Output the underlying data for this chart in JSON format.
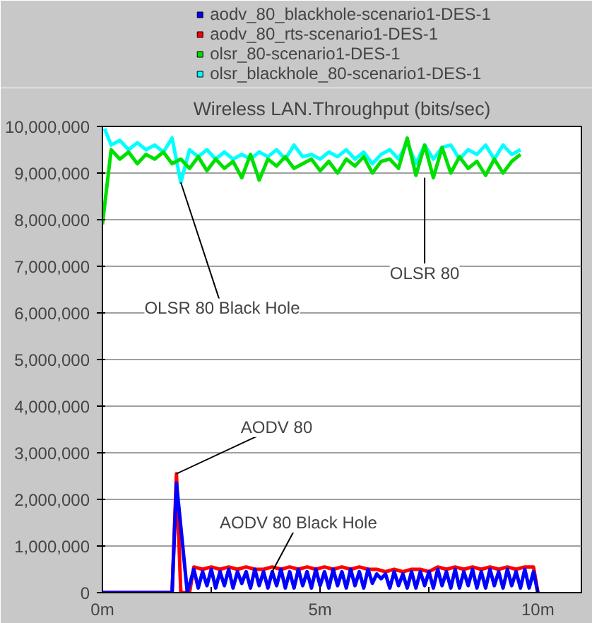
{
  "chart_data": {
    "type": "line",
    "title": "Wireless LAN.Throughput (bits/sec)",
    "xlim": [
      0,
      11
    ],
    "ylim": [
      0,
      10000000
    ],
    "xticks": [
      {
        "value": 0,
        "label": "0m"
      },
      {
        "value": 2.5,
        "label": null
      },
      {
        "value": 5,
        "label": "5m"
      },
      {
        "value": 7.5,
        "label": null
      },
      {
        "value": 10,
        "label": "10m"
      }
    ],
    "yticks": [
      {
        "value": 0,
        "label": "0"
      },
      {
        "value": 1000000,
        "label": "1,000,000"
      },
      {
        "value": 2000000,
        "label": "2,000,000"
      },
      {
        "value": 3000000,
        "label": "3,000,000"
      },
      {
        "value": 4000000,
        "label": "4,000,000"
      },
      {
        "value": 5000000,
        "label": "5,000,000"
      },
      {
        "value": 6000000,
        "label": "6,000,000"
      },
      {
        "value": 7000000,
        "label": "7,000,000"
      },
      {
        "value": 8000000,
        "label": "8,000,000"
      },
      {
        "value": 9000000,
        "label": "9,000,000"
      },
      {
        "value": 10000000,
        "label": "10,000,000"
      }
    ],
    "grid": "y",
    "legend": "top",
    "series": [
      {
        "name": "aodv_80_blackhole-scenario1-DES-1",
        "color": "#0000ff",
        "x": [
          0,
          1.6,
          1.7,
          1.95,
          2.1,
          2.2,
          2.3,
          2.4,
          2.5,
          2.6,
          2.7,
          2.8,
          2.9,
          3.0,
          3.1,
          3.2,
          3.3,
          3.4,
          3.5,
          3.6,
          3.7,
          3.8,
          3.9,
          4.0,
          4.1,
          4.2,
          4.3,
          4.4,
          4.5,
          4.6,
          4.7,
          4.8,
          4.9,
          5.0,
          5.1,
          5.2,
          5.3,
          5.4,
          5.5,
          5.6,
          5.7,
          5.8,
          5.9,
          6.0,
          6.1,
          6.2,
          6.3,
          6.4,
          6.5,
          6.6,
          6.7,
          6.8,
          6.9,
          7.0,
          7.1,
          7.2,
          7.3,
          7.4,
          7.5,
          7.6,
          7.7,
          7.8,
          7.9,
          8.0,
          8.1,
          8.2,
          8.3,
          8.4,
          8.5,
          8.6,
          8.7,
          8.8,
          8.9,
          9.0,
          9.1,
          9.2,
          9.3,
          9.4,
          9.5,
          9.6,
          9.7,
          9.8,
          9.9,
          10.0
        ],
        "values": [
          0,
          0,
          2350000,
          0,
          500000,
          100000,
          450000,
          150000,
          500000,
          100000,
          450000,
          150000,
          500000,
          100000,
          450000,
          200000,
          450000,
          100000,
          500000,
          150000,
          450000,
          100000,
          450000,
          150000,
          500000,
          100000,
          450000,
          100000,
          500000,
          150000,
          450000,
          100000,
          500000,
          150000,
          450000,
          100000,
          500000,
          150000,
          450000,
          100000,
          500000,
          150000,
          450000,
          100000,
          500000,
          200000,
          400000,
          300000,
          400000,
          100000,
          450000,
          150000,
          400000,
          100000,
          450000,
          100000,
          450000,
          150000,
          450000,
          100000,
          500000,
          150000,
          450000,
          100000,
          500000,
          100000,
          450000,
          150000,
          500000,
          100000,
          450000,
          100000,
          500000,
          150000,
          450000,
          100000,
          500000,
          150000,
          450000,
          100000,
          500000,
          100000,
          450000,
          0
        ]
      },
      {
        "name": "aodv_80_rts-scenario1-DES-1",
        "color": "#ff0000",
        "x": [
          0,
          1.6,
          1.7,
          1.8,
          2.0,
          2.1,
          2.3,
          2.5,
          2.7,
          2.9,
          3.1,
          3.3,
          3.5,
          3.7,
          3.9,
          4.1,
          4.3,
          4.5,
          4.7,
          4.9,
          5.1,
          5.3,
          5.5,
          5.7,
          5.9,
          6.1,
          6.3,
          6.5,
          6.7,
          6.9,
          7.1,
          7.3,
          7.5,
          7.7,
          7.9,
          8.1,
          8.3,
          8.5,
          8.7,
          8.9,
          9.1,
          9.3,
          9.5,
          9.7,
          9.9,
          10.0
        ],
        "values": [
          0,
          0,
          2550000,
          0,
          0,
          550000,
          500000,
          550000,
          500000,
          550000,
          500000,
          550000,
          500000,
          500000,
          550000,
          500000,
          550000,
          500000,
          550000,
          500000,
          550000,
          500000,
          550000,
          500000,
          550000,
          500000,
          500000,
          450000,
          500000,
          450000,
          500000,
          500000,
          450000,
          550000,
          500000,
          550000,
          500000,
          550000,
          500000,
          550000,
          500000,
          550000,
          500000,
          550000,
          550000,
          0
        ]
      },
      {
        "name": "olsr_80-scenario1-DES-1",
        "color": "#00e000",
        "x": [
          0,
          0.2,
          0.4,
          0.6,
          0.8,
          1.0,
          1.2,
          1.4,
          1.6,
          1.8,
          2.0,
          2.2,
          2.4,
          2.6,
          2.8,
          3.0,
          3.2,
          3.4,
          3.6,
          3.8,
          4.0,
          4.2,
          4.4,
          4.6,
          4.8,
          5.0,
          5.2,
          5.4,
          5.6,
          5.8,
          6.0,
          6.2,
          6.4,
          6.6,
          6.8,
          7.0,
          7.2,
          7.4,
          7.6,
          7.8,
          8.0,
          8.2,
          8.4,
          8.6,
          8.8,
          9.0,
          9.2,
          9.4,
          9.6
        ],
        "values": [
          7900000,
          9500000,
          9300000,
          9450000,
          9200000,
          9400000,
          9300000,
          9450000,
          9200000,
          9300000,
          9100000,
          9350000,
          9050000,
          9300000,
          9100000,
          9250000,
          8900000,
          9400000,
          8850000,
          9300000,
          9150000,
          9350000,
          9100000,
          9200000,
          9300000,
          9050000,
          9250000,
          9000000,
          9300000,
          9150000,
          9350000,
          9000000,
          9250000,
          9300000,
          9100000,
          9750000,
          8950000,
          9600000,
          8900000,
          9550000,
          9000000,
          9350000,
          9100000,
          9250000,
          8950000,
          9300000,
          9000000,
          9250000,
          9400000
        ]
      },
      {
        "name": "olsr_blackhole_80-scenario1-DES-1",
        "color": "#00ffff",
        "x": [
          0.05,
          0.2,
          0.4,
          0.6,
          0.8,
          1.0,
          1.2,
          1.4,
          1.6,
          1.8,
          2.0,
          2.2,
          2.4,
          2.6,
          2.8,
          3.0,
          3.2,
          3.4,
          3.6,
          3.8,
          4.0,
          4.2,
          4.4,
          4.6,
          4.8,
          5.0,
          5.2,
          5.4,
          5.6,
          5.8,
          6.0,
          6.2,
          6.4,
          6.6,
          6.8,
          7.0,
          7.2,
          7.4,
          7.6,
          7.8,
          8.0,
          8.2,
          8.4,
          8.6,
          8.8,
          9.0,
          9.2,
          9.4,
          9.6
        ],
        "values": [
          9950000,
          9600000,
          9700000,
          9500000,
          9650000,
          9500000,
          9600000,
          9450000,
          9750000,
          8800000,
          9500000,
          9350000,
          9500000,
          9300000,
          9450000,
          9300000,
          9400000,
          9300000,
          9450000,
          9350000,
          9500000,
          9300000,
          9600000,
          9350000,
          9400000,
          9300000,
          9450000,
          9350000,
          9500000,
          9300000,
          9450000,
          9200000,
          9400000,
          9500000,
          9300000,
          9650000,
          9200000,
          9600000,
          9300000,
          9550000,
          9600000,
          9300000,
          9500000,
          9400000,
          9600000,
          9300000,
          9600000,
          9400000,
          9500000
        ]
      }
    ],
    "annotations": [
      {
        "text": "OLSR 80 Black Hole",
        "x": 1.8,
        "y": 8800000
      },
      {
        "text": "OLSR 80",
        "x": 7.4,
        "y": 8900000
      },
      {
        "text": "AODV 80",
        "x": 1.7,
        "y": 2550000
      },
      {
        "text": "AODV 80 Black Hole",
        "x": 3.9,
        "y": 450000
      }
    ]
  }
}
